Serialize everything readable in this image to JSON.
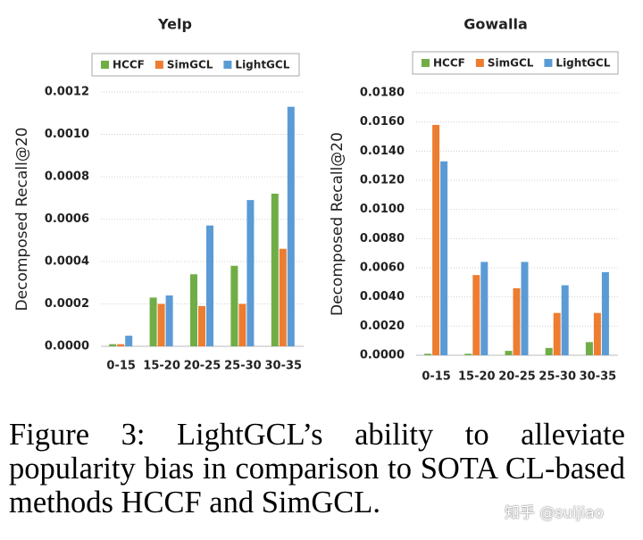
{
  "chart_data": [
    {
      "type": "bar",
      "title": "Yelp",
      "y_label": "Decomposed Recall@20",
      "categories": [
        "0-15",
        "15-20",
        "20-25",
        "25-30",
        "30-35"
      ],
      "series": [
        {
          "name": "HCCF",
          "color": "#70ad47",
          "values": [
            1e-05,
            0.00023,
            0.00034,
            0.00038,
            0.00072
          ]
        },
        {
          "name": "SimGCL",
          "color": "#ed7d31",
          "values": [
            1e-05,
            0.0002,
            0.00019,
            0.0002,
            0.00046
          ]
        },
        {
          "name": "LightGCL",
          "color": "#5b9bd5",
          "values": [
            5e-05,
            0.00024,
            0.00057,
            0.00069,
            0.00113
          ]
        }
      ],
      "ylim": [
        0,
        0.0012
      ],
      "yticks": [
        {
          "value": 0,
          "label": "0.0000"
        },
        {
          "value": 0.0002,
          "label": "0.0002"
        },
        {
          "value": 0.0004,
          "label": "0.0004"
        },
        {
          "value": 0.0006,
          "label": "0.0006"
        },
        {
          "value": 0.0008,
          "label": "0.0008"
        },
        {
          "value": 0.001,
          "label": "0.0010"
        },
        {
          "value": 0.0012,
          "label": "0.0012"
        }
      ],
      "grid": true,
      "legend": "top"
    },
    {
      "type": "bar",
      "title": "Gowalla",
      "y_label": "Decomposed Recall@20",
      "categories": [
        "0-15",
        "15-20",
        "20-25",
        "25-30",
        "30-35"
      ],
      "series": [
        {
          "name": "HCCF",
          "color": "#70ad47",
          "values": [
            0.0001,
            0.0001,
            0.0003,
            0.0005,
            0.0009
          ]
        },
        {
          "name": "SimGCL",
          "color": "#ed7d31",
          "values": [
            0.0158,
            0.0055,
            0.0046,
            0.0029,
            0.0029
          ]
        },
        {
          "name": "LightGCL",
          "color": "#5b9bd5",
          "values": [
            0.0133,
            0.0064,
            0.0064,
            0.0048,
            0.0057
          ]
        }
      ],
      "ylim": [
        0,
        0.018
      ],
      "yticks": [
        {
          "value": 0,
          "label": "0.0000"
        },
        {
          "value": 0.002,
          "label": "0.0020"
        },
        {
          "value": 0.004,
          "label": "0.0040"
        },
        {
          "value": 0.006,
          "label": "0.0060"
        },
        {
          "value": 0.008,
          "label": "0.0080"
        },
        {
          "value": 0.01,
          "label": "0.0100"
        },
        {
          "value": 0.012,
          "label": "0.0120"
        },
        {
          "value": 0.014,
          "label": "0.0140"
        },
        {
          "value": 0.016,
          "label": "0.0160"
        },
        {
          "value": 0.018,
          "label": "0.0180"
        }
      ],
      "grid": true,
      "legend": "top"
    }
  ],
  "caption": "Figure 3: LightGCL’s ability to alleviate popularity bias in comparison to SOTA CL-based methods HCCF and SimGCL.",
  "watermark": "知乎 @suijiao"
}
